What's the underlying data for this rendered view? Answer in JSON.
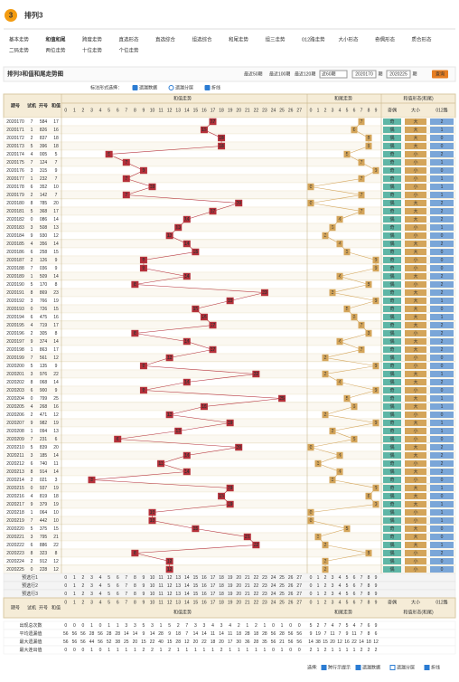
{
  "header": {
    "logo": "3",
    "title": "排列3",
    "nav": [
      [
        "基本走势",
        "和值和尾",
        "跨度走势",
        "直选形态",
        "直选综合",
        "组选综合",
        "和尾走势",
        "组三走势",
        "012路走势",
        "大小形态",
        "奇偶形态",
        "质合形态"
      ],
      [
        "二码走势",
        "两位走势",
        "十位走势",
        "个位走势"
      ]
    ]
  },
  "toolbar": {
    "title": "排列3和值和尾走势图",
    "links": [
      "最近50期",
      "最近100期",
      "最近120期"
    ],
    "select": "近60期",
    "from": "2020170",
    "from_unit": "期",
    "to": "2020225",
    "to_unit": "期",
    "button": "查询"
  },
  "options": {
    "label": "标注形式选择：",
    "items": [
      "遗漏数据",
      "遗漏分层",
      "折线"
    ]
  },
  "table": {
    "head": [
      "期号",
      "试机",
      "开号",
      "和值"
    ],
    "groups": [
      "和值走势",
      "和尾走势",
      "和值形态(和尾)"
    ],
    "shape_head": [
      "奇偶",
      "大小",
      "012路"
    ],
    "sum_cols": [
      0,
      1,
      2,
      3,
      4,
      5,
      6,
      7,
      8,
      9,
      10,
      11,
      12,
      13,
      14,
      15,
      16,
      17,
      18,
      19,
      20,
      21,
      22,
      23,
      24,
      25,
      26,
      27
    ],
    "tail_cols": [
      0,
      1,
      2,
      3,
      4,
      5,
      6,
      7,
      8,
      9
    ],
    "rows": [
      [
        "2020170",
        "7",
        "584",
        17,
        7,
        "奇",
        "大",
        "2"
      ],
      [
        "2020171",
        "1",
        "826",
        16,
        6,
        "偶",
        "大",
        "1"
      ],
      [
        "2020172",
        "2",
        "837",
        18,
        8,
        "偶",
        "大",
        "0"
      ],
      [
        "2020173",
        "5",
        "396",
        18,
        8,
        "偶",
        "大",
        "0"
      ],
      [
        "2020174",
        "4",
        "005",
        5,
        5,
        "奇",
        "小",
        "2"
      ],
      [
        "2020175",
        "7",
        "124",
        7,
        7,
        "奇",
        "小",
        "1"
      ],
      [
        "2020176",
        "3",
        "315",
        9,
        9,
        "奇",
        "小",
        "0"
      ],
      [
        "2020177",
        "1",
        "232",
        7,
        7,
        "奇",
        "小",
        "1"
      ],
      [
        "2020178",
        "6",
        "352",
        10,
        0,
        "偶",
        "小",
        "1"
      ],
      [
        "2020179",
        "2",
        "142",
        7,
        7,
        "奇",
        "小",
        "1"
      ],
      [
        "2020180",
        "8",
        "785",
        20,
        0,
        "偶",
        "大",
        "2"
      ],
      [
        "2020181",
        "5",
        "368",
        17,
        7,
        "奇",
        "大",
        "2"
      ],
      [
        "2020182",
        "0",
        "086",
        14,
        4,
        "偶",
        "大",
        "2"
      ],
      [
        "2020183",
        "3",
        "508",
        13,
        3,
        "奇",
        "小",
        "1"
      ],
      [
        "2020184",
        "9",
        "930",
        12,
        2,
        "偶",
        "小",
        "0"
      ],
      [
        "2020185",
        "4",
        "356",
        14,
        4,
        "偶",
        "大",
        "2"
      ],
      [
        "2020186",
        "6",
        "258",
        15,
        5,
        "奇",
        "大",
        "0"
      ],
      [
        "2020187",
        "2",
        "126",
        9,
        9,
        "奇",
        "小",
        "0"
      ],
      [
        "2020188",
        "7",
        "036",
        9,
        9,
        "奇",
        "小",
        "0"
      ],
      [
        "2020189",
        "1",
        "509",
        14,
        4,
        "偶",
        "大",
        "2"
      ],
      [
        "2020190",
        "5",
        "170",
        8,
        8,
        "偶",
        "小",
        "2"
      ],
      [
        "2020191",
        "8",
        "869",
        23,
        3,
        "奇",
        "大",
        "2"
      ],
      [
        "2020192",
        "3",
        "766",
        19,
        9,
        "奇",
        "大",
        "1"
      ],
      [
        "2020193",
        "0",
        "726",
        15,
        5,
        "奇",
        "大",
        "0"
      ],
      [
        "2020194",
        "6",
        "475",
        16,
        6,
        "偶",
        "大",
        "1"
      ],
      [
        "2020195",
        "4",
        "719",
        17,
        7,
        "奇",
        "大",
        "2"
      ],
      [
        "2020196",
        "2",
        "305",
        8,
        8,
        "偶",
        "小",
        "2"
      ],
      [
        "2020197",
        "9",
        "374",
        14,
        4,
        "偶",
        "大",
        "2"
      ],
      [
        "2020198",
        "1",
        "863",
        17,
        7,
        "奇",
        "大",
        "2"
      ],
      [
        "2020199",
        "7",
        "561",
        12,
        2,
        "偶",
        "小",
        "0"
      ],
      [
        "2020200",
        "5",
        "135",
        9,
        9,
        "奇",
        "小",
        "0"
      ],
      [
        "2020201",
        "3",
        "976",
        22,
        2,
        "偶",
        "大",
        "1"
      ],
      [
        "2020202",
        "8",
        "068",
        14,
        4,
        "偶",
        "大",
        "2"
      ],
      [
        "2020203",
        "6",
        "900",
        9,
        9,
        "奇",
        "小",
        "0"
      ],
      [
        "2020204",
        "0",
        "799",
        25,
        5,
        "奇",
        "大",
        "1"
      ],
      [
        "2020205",
        "4",
        "268",
        16,
        6,
        "偶",
        "大",
        "1"
      ],
      [
        "2020206",
        "2",
        "471",
        12,
        2,
        "偶",
        "小",
        "0"
      ],
      [
        "2020207",
        "9",
        "982",
        19,
        9,
        "奇",
        "大",
        "1"
      ],
      [
        "2020208",
        "1",
        "094",
        13,
        3,
        "奇",
        "小",
        "1"
      ],
      [
        "2020209",
        "7",
        "231",
        6,
        6,
        "偶",
        "小",
        "0"
      ],
      [
        "2020210",
        "5",
        "839",
        20,
        0,
        "偶",
        "大",
        "2"
      ],
      [
        "2020211",
        "3",
        "185",
        14,
        4,
        "偶",
        "大",
        "2"
      ],
      [
        "2020212",
        "6",
        "740",
        11,
        1,
        "奇",
        "小",
        "2"
      ],
      [
        "2020213",
        "8",
        "914",
        14,
        4,
        "偶",
        "大",
        "2"
      ],
      [
        "2020214",
        "2",
        "021",
        3,
        3,
        "奇",
        "小",
        "0"
      ],
      [
        "2020215",
        "0",
        "937",
        19,
        9,
        "奇",
        "大",
        "1"
      ],
      [
        "2020216",
        "4",
        "819",
        18,
        8,
        "偶",
        "大",
        "0"
      ],
      [
        "2020217",
        "9",
        "379",
        19,
        9,
        "奇",
        "大",
        "1"
      ],
      [
        "2020218",
        "1",
        "064",
        10,
        0,
        "偶",
        "小",
        "1"
      ],
      [
        "2020219",
        "7",
        "442",
        10,
        0,
        "偶",
        "小",
        "1"
      ],
      [
        "2020220",
        "5",
        "375",
        15,
        5,
        "奇",
        "大",
        "0"
      ],
      [
        "2020221",
        "3",
        "795",
        21,
        1,
        "奇",
        "大",
        "0"
      ],
      [
        "2020222",
        "6",
        "886",
        22,
        2,
        "偶",
        "大",
        "1"
      ],
      [
        "2020223",
        "8",
        "323",
        8,
        8,
        "偶",
        "小",
        "2"
      ],
      [
        "2020224",
        "2",
        "912",
        12,
        2,
        "偶",
        "小",
        "0"
      ],
      [
        "2020225",
        "0",
        "228",
        12,
        2,
        "偶",
        "小",
        "0"
      ]
    ],
    "preselect": [
      "预选行1",
      "预选行2",
      "预选行3"
    ],
    "stats": [
      {
        "label": "出现总次数",
        "sum": [
          0,
          0,
          0,
          1,
          0,
          1,
          1,
          3,
          3,
          5,
          3,
          1,
          5,
          2,
          7,
          3,
          3,
          4,
          3,
          4,
          2,
          1,
          2,
          1,
          0,
          1,
          0,
          0
        ],
        "tail": [
          5,
          2,
          7,
          4,
          7,
          5,
          4,
          7,
          6,
          9
        ]
      },
      {
        "label": "平均遗漏值",
        "sum": [
          56,
          56,
          56,
          28,
          56,
          28,
          28,
          14,
          14,
          9,
          14,
          28,
          9,
          18,
          7,
          14,
          14,
          11,
          14,
          11,
          18,
          28,
          18,
          28,
          56,
          28,
          56,
          56
        ],
        "tail": [
          9,
          19,
          7,
          11,
          7,
          9,
          11,
          7,
          8,
          6
        ]
      },
      {
        "label": "最大遗漏值",
        "sum": [
          56,
          56,
          56,
          44,
          56,
          52,
          38,
          25,
          20,
          15,
          22,
          40,
          15,
          28,
          12,
          20,
          22,
          18,
          20,
          17,
          30,
          36,
          28,
          35,
          56,
          21,
          56,
          56
        ],
        "tail": [
          14,
          38,
          15,
          20,
          12,
          16,
          22,
          14,
          18,
          12
        ]
      },
      {
        "label": "最大连出值",
        "sum": [
          0,
          0,
          0,
          1,
          0,
          1,
          1,
          1,
          1,
          2,
          2,
          1,
          2,
          1,
          1,
          1,
          1,
          1,
          2,
          1,
          1,
          1,
          1,
          1,
          0,
          1,
          0,
          0
        ],
        "tail": [
          2,
          1,
          2,
          1,
          1,
          1,
          1,
          2,
          2,
          2
        ]
      }
    ]
  },
  "footer": {
    "label": "选择:",
    "items": [
      "跨行示提示",
      "遗漏数据",
      "遗漏分层",
      "折线"
    ]
  }
}
